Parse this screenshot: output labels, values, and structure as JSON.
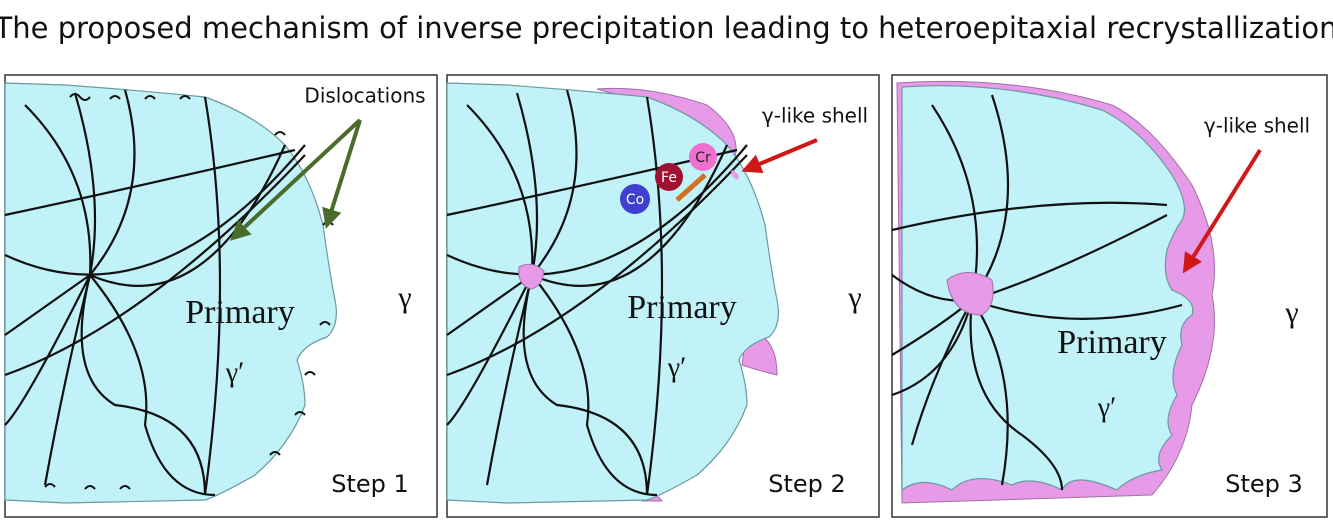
{
  "title": "The proposed mechanism of inverse precipitation leading to  heteroepitaxial recrystallization",
  "panels": [
    {
      "label": "Step 1",
      "phase_label": "Primary",
      "phase_symbol": "γ′",
      "matrix_symbol": "γ",
      "annotation": "Dislocations"
    },
    {
      "label": "Step 2",
      "phase_label": "Primary",
      "phase_symbol": "γ′",
      "matrix_symbol": "γ",
      "annotation": "γ-like shell",
      "atoms": [
        "Co",
        "Fe",
        "Cr"
      ]
    },
    {
      "label": "Step 3",
      "phase_label": "Primary",
      "phase_symbol": "γ′",
      "matrix_symbol": "γ",
      "annotation": "γ-like shell"
    }
  ]
}
